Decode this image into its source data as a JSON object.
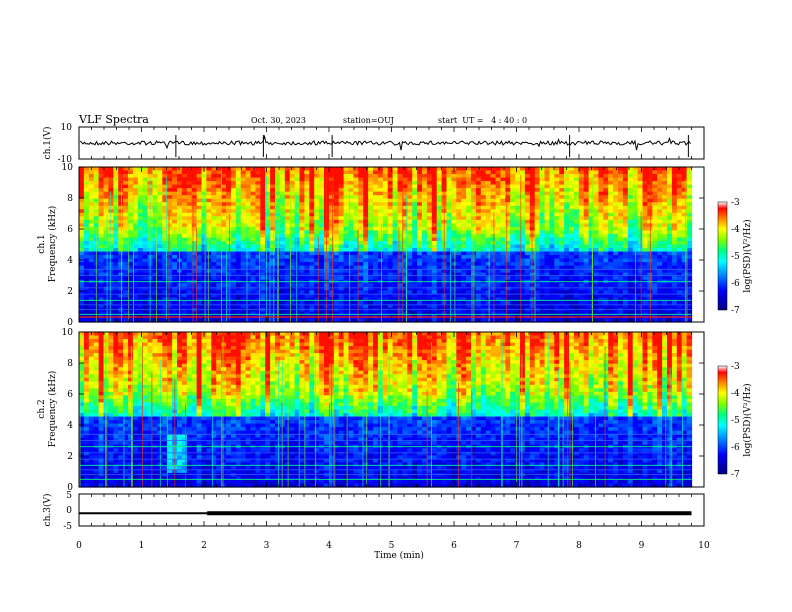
{
  "header": {
    "title": "VLF Spectra",
    "date": "Oct. 30, 2023",
    "station": "station=OUJ",
    "start": "start  UT =   4 : 40 : 0"
  },
  "chart_data": [
    {
      "type": "line",
      "panel": "ch1-waveform",
      "ylabel": "ch.1(V)",
      "ylim": [
        -10,
        10
      ],
      "yticks": [
        "10",
        "-10"
      ],
      "x": [
        0,
        9.8
      ],
      "baseline_value": 0
    },
    {
      "type": "heatmap",
      "panel": "ch1-spectrogram",
      "ylabel_line1": "ch.1",
      "ylabel_line2": "Frequency (kHz)",
      "ylim": [
        0,
        10
      ],
      "yticks": [
        "0",
        "2",
        "4",
        "6",
        "8",
        "10"
      ],
      "xlim": [
        0,
        10
      ],
      "data_extent_min": 9.8,
      "colorbar": {
        "label": "log(PSD)(V²/Hz)",
        "range": [
          -7,
          -3
        ],
        "ticks": [
          "-3",
          "-4",
          "-5",
          "-6",
          "-7"
        ],
        "colors": [
          "#000080",
          "#0000ff",
          "#00a0ff",
          "#00ffff",
          "#00ff80",
          "#80ff00",
          "#ffff00",
          "#ff8000",
          "#ff0000",
          "#ffffff"
        ]
      }
    },
    {
      "type": "heatmap",
      "panel": "ch2-spectrogram",
      "ylabel_line1": "ch.2",
      "ylabel_line2": "Frequency (kHz)",
      "ylim": [
        0,
        10
      ],
      "yticks": [
        "0",
        "2",
        "4",
        "6",
        "8",
        "10"
      ],
      "xlim": [
        0,
        10
      ],
      "data_extent_min": 9.8,
      "colorbar": {
        "label": "log(PSD)(V²/Hz)",
        "range": [
          -7,
          -3
        ],
        "ticks": [
          "-3",
          "-4",
          "-5",
          "-6",
          "-7"
        ]
      }
    },
    {
      "type": "line",
      "panel": "ch3-level",
      "ylabel": "ch.3(V)",
      "ylim": [
        -5,
        5
      ],
      "yticks": [
        "5",
        "0",
        "-5"
      ],
      "x": [
        0,
        2.05,
        9.8
      ],
      "y": [
        -1.0,
        -1.0,
        -1.0
      ]
    }
  ],
  "xaxis": {
    "label": "Time (min)",
    "ticks": [
      "0",
      "1",
      "2",
      "3",
      "4",
      "5",
      "6",
      "7",
      "8",
      "9",
      "10"
    ]
  }
}
